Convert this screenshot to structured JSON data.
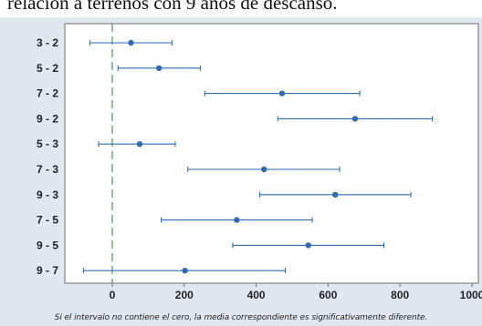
{
  "page": {
    "caption": "relación a terrenos con 9 años de descanso."
  },
  "chart_data": {
    "type": "interval-plot",
    "orientation": "horizontal",
    "categories": [
      "3 - 2",
      "5 - 2",
      "7 - 2",
      "9 - 2",
      "5 - 3",
      "7 - 3",
      "9 - 3",
      "7 - 5",
      "9 - 5",
      "9 - 7"
    ],
    "means": [
      52,
      130,
      472,
      675,
      76,
      422,
      620,
      346,
      545,
      202
    ],
    "lower": [
      -62,
      16,
      257,
      460,
      -38,
      210,
      410,
      136,
      335,
      -80
    ],
    "upper": [
      166,
      245,
      688,
      890,
      175,
      632,
      830,
      556,
      755,
      481
    ],
    "xlim": [
      -140,
      1000
    ],
    "xticks": [
      0,
      200,
      400,
      600,
      800,
      1000
    ],
    "reference_line": 0,
    "colors": {
      "interval": "#2e6db3",
      "reference": "#3f9a4f",
      "frame": "#6f6f6f",
      "text": "#222222"
    },
    "note": "Si el intervalo no contiene el cero, la media correspondiente es significativamente diferente."
  }
}
